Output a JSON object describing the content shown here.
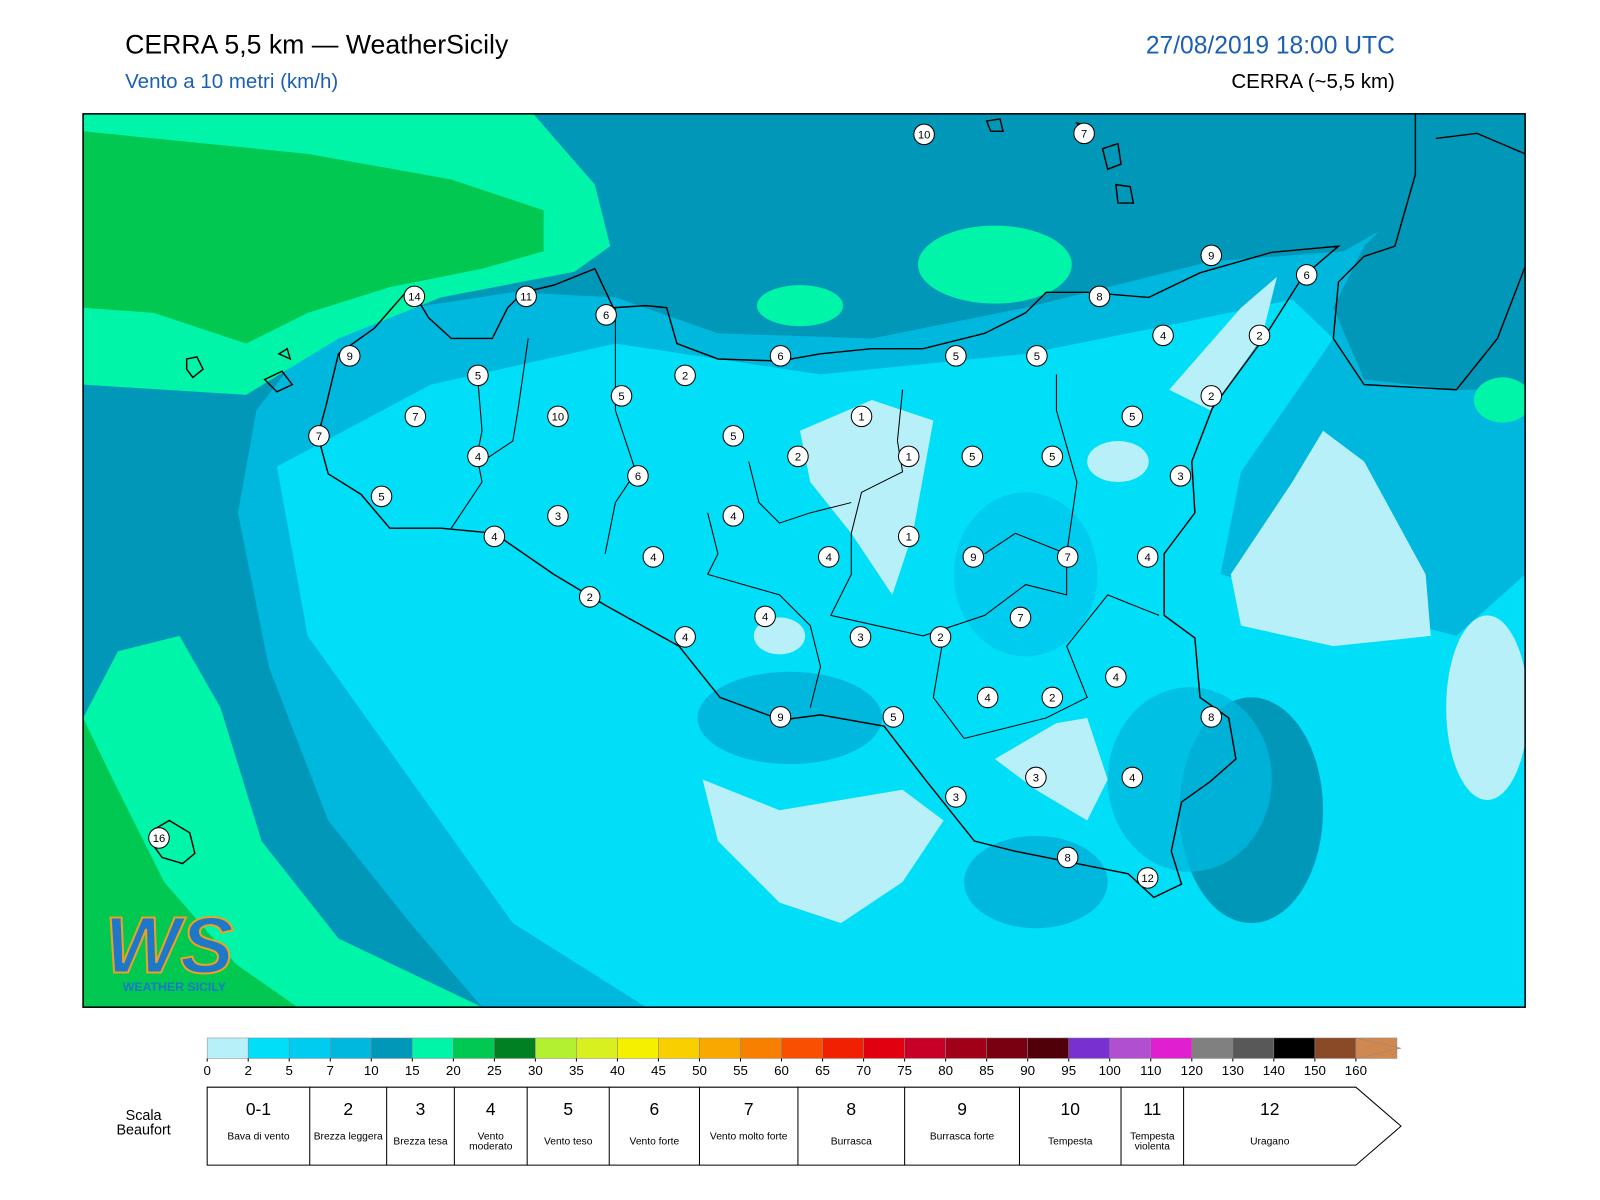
{
  "header": {
    "title": "CERRA 5,5 km — WeatherSicily",
    "subtitle": "Vento a 10 metri (km/h)",
    "datetime": "27/08/2019 18:00 UTC",
    "model": "CERRA (~5,5 km)"
  },
  "stations": [
    10,
    7,
    9,
    6,
    14,
    11,
    6,
    8,
    4,
    2,
    9,
    6,
    5,
    5,
    5,
    2,
    5,
    2,
    7,
    10,
    1,
    5,
    7,
    5,
    4,
    2,
    1,
    5,
    5,
    6,
    3,
    5,
    3,
    4,
    4,
    1,
    4,
    4,
    9,
    7,
    4,
    2,
    7,
    4,
    3,
    2,
    4,
    4,
    4,
    2,
    9,
    5,
    8,
    3,
    4,
    3,
    16,
    8,
    12
  ],
  "logo": {
    "mark": "WS",
    "caption": "WEATHER SICILY"
  },
  "colorbar": {
    "ticks": [
      0,
      2,
      5,
      7,
      10,
      15,
      20,
      25,
      30,
      35,
      40,
      45,
      50,
      55,
      60,
      65,
      70,
      75,
      80,
      85,
      90,
      95,
      100,
      110,
      120,
      130,
      140,
      150,
      160
    ],
    "colors": [
      "#b8f0fa",
      "#00def8",
      "#00ccef",
      "#00b8de",
      "#0097b8",
      "#00f5a8",
      "#00c850",
      "#008020",
      "#b4f032",
      "#d8f020",
      "#f4f000",
      "#f8d000",
      "#f8a800",
      "#f88000",
      "#f85000",
      "#f02000",
      "#e00010",
      "#c80028",
      "#a00018",
      "#780010",
      "#500008",
      "#7830d0",
      "#b050d0",
      "#e020d0",
      "#808080",
      "#585858",
      "#000000",
      "#8a4a28",
      "#d08850"
    ]
  },
  "beaufort": {
    "caption": "Scala Beaufort",
    "levels": [
      {
        "force": "0-1",
        "label": "Bava di vento"
      },
      {
        "force": 2,
        "label": "Brezza leggera"
      },
      {
        "force": 3,
        "label": "Brezza tesa"
      },
      {
        "force": 4,
        "label": "Vento moderato"
      },
      {
        "force": 5,
        "label": "Vento teso"
      },
      {
        "force": 6,
        "label": "Vento forte"
      },
      {
        "force": 7,
        "label": "Vento molto forte"
      },
      {
        "force": 8,
        "label": "Burrasca"
      },
      {
        "force": 9,
        "label": "Burrasca forte"
      },
      {
        "force": 10,
        "label": "Tempesta"
      },
      {
        "force": 11,
        "label": "Tempesta violenta"
      },
      {
        "force": 12,
        "label": "Uragano"
      }
    ]
  }
}
